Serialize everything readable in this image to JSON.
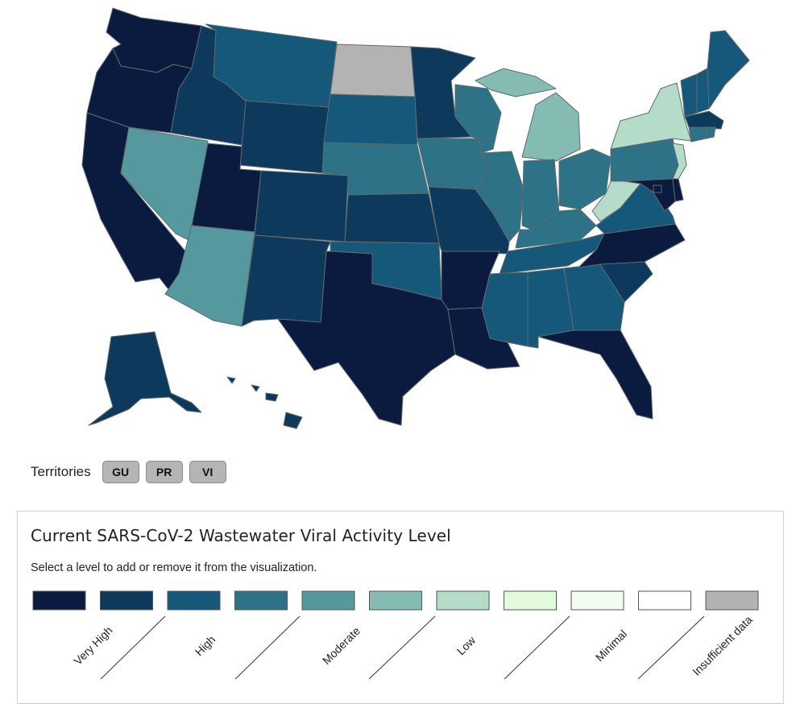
{
  "colors": {
    "very_high": "#0b1b3f",
    "high_a": "#0d3a5c",
    "high_b": "#16587a",
    "moderate_a": "#2e7288",
    "moderate_b": "#55999e",
    "low_a": "#84bbb3",
    "low_b": "#b5dcc9",
    "minimal_a": "#e2fbdc",
    "minimal_b": "#f2fdf0",
    "minimal_c": "#ffffff",
    "insufficient": "#b3b3b3"
  },
  "territories": {
    "label": "Territories",
    "buttons": [
      "GU",
      "PR",
      "VI"
    ]
  },
  "legend": {
    "title": "Current SARS-CoV-2 Wastewater Viral Activity Level",
    "instruction": "Select a level to add or remove it from the visualization.",
    "swatches": [
      "very_high",
      "high_a",
      "high_b",
      "moderate_a",
      "moderate_b",
      "low_a",
      "low_b",
      "minimal_a",
      "minimal_b",
      "minimal_c",
      "insufficient"
    ],
    "labels": [
      "Very High",
      "High",
      "Moderate",
      "Low",
      "Minimal",
      "Insufficient data"
    ]
  },
  "states": {
    "WA": "very_high",
    "OR": "very_high",
    "CA": "very_high",
    "NV": "moderate_b",
    "ID": "high_a",
    "MT": "high_b",
    "WY": "high_a",
    "UT": "very_high",
    "AZ": "moderate_b",
    "CO": "high_a",
    "NM": "high_a",
    "ND": "insufficient",
    "SD": "high_b",
    "NE": "moderate_a",
    "KS": "high_a",
    "OK": "high_b",
    "TX": "very_high",
    "MN": "high_a",
    "IA": "moderate_a",
    "MO": "high_a",
    "AR": "very_high",
    "LA": "very_high",
    "WI": "moderate_a",
    "IL": "moderate_a",
    "MI": "low_a",
    "IN": "moderate_a",
    "KY": "moderate_a",
    "TN": "high_b",
    "MS": "high_b",
    "AL": "high_b",
    "GA": "high_b",
    "FL": "very_high",
    "SC": "high_a",
    "NC": "very_high",
    "VA": "high_b",
    "WV": "low_b",
    "OH": "moderate_a",
    "PA": "moderate_a",
    "NY": "low_b",
    "VT": "high_b",
    "NH": "high_b",
    "ME": "high_b",
    "MA": "high_a",
    "CT": "moderate_a",
    "RI": "moderate_a",
    "NJ": "low_b",
    "DE": "very_high",
    "MD": "very_high",
    "DC": "very_high",
    "AK": "high_a",
    "HI": "high_a"
  }
}
